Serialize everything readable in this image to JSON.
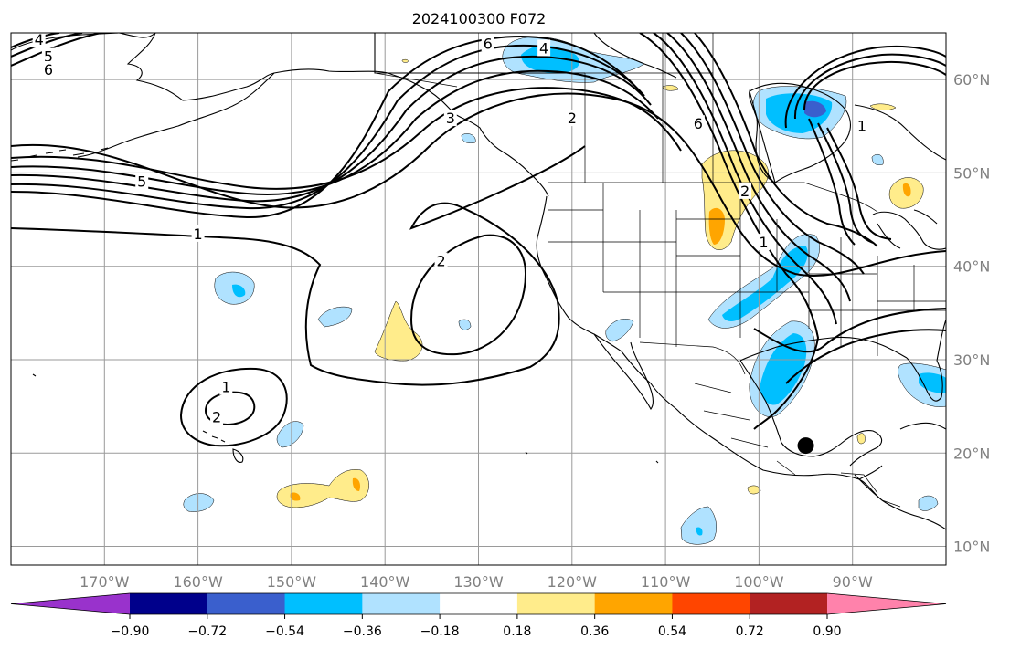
{
  "title": "2024100300 F072",
  "map": {
    "lon_range": [
      -180,
      -80
    ],
    "lat_range": [
      8,
      65
    ],
    "lon_ticks": [
      {
        "value": -170,
        "label": "170°W"
      },
      {
        "value": -160,
        "label": "160°W"
      },
      {
        "value": -150,
        "label": "150°W"
      },
      {
        "value": -140,
        "label": "140°W"
      },
      {
        "value": -130,
        "label": "130°W"
      },
      {
        "value": -120,
        "label": "120°W"
      },
      {
        "value": -110,
        "label": "110°W"
      },
      {
        "value": -100,
        "label": "100°W"
      },
      {
        "value": -90,
        "label": "90°W"
      }
    ],
    "lat_ticks": [
      {
        "value": 10,
        "label": "10°N"
      },
      {
        "value": 20,
        "label": "20°N"
      },
      {
        "value": 30,
        "label": "30°N"
      },
      {
        "value": 40,
        "label": "40°N"
      },
      {
        "value": 50,
        "label": "50°N"
      },
      {
        "value": 60,
        "label": "60°N"
      }
    ],
    "grid": true,
    "marker": {
      "lon": -95,
      "lat": 20.8,
      "color": "#000000"
    }
  },
  "contour_labels": [
    {
      "text": "4",
      "lon": -177,
      "lat": 64.2
    },
    {
      "text": "5",
      "lon": -176,
      "lat": 62.4
    },
    {
      "text": "6",
      "lon": -176,
      "lat": 61.0
    },
    {
      "text": "6",
      "lon": -129,
      "lat": 63.8
    },
    {
      "text": "4",
      "lon": -123,
      "lat": 63.3
    },
    {
      "text": "3",
      "lon": -133,
      "lat": 55.8
    },
    {
      "text": "2",
      "lon": -120,
      "lat": 55.8
    },
    {
      "text": "5",
      "lon": -166,
      "lat": 49.0
    },
    {
      "text": "1",
      "lon": -160,
      "lat": 43.4
    },
    {
      "text": "2",
      "lon": -134,
      "lat": 40.5
    },
    {
      "text": "1",
      "lon": -157,
      "lat": 27.0
    },
    {
      "text": "2",
      "lon": -158,
      "lat": 23.8
    },
    {
      "text": "6",
      "lon": -106.5,
      "lat": 55.2
    },
    {
      "text": "2",
      "lon": -101.5,
      "lat": 48.0
    },
    {
      "text": "1",
      "lon": -99.5,
      "lat": 42.5
    },
    {
      "text": "1",
      "lon": -89,
      "lat": 55.0
    }
  ],
  "colorbar": {
    "ticks": [
      "−0.90",
      "−0.72",
      "−0.54",
      "−0.36",
      "−0.18",
      "0.18",
      "0.36",
      "0.54",
      "0.72",
      "0.90"
    ],
    "colors": [
      "#9932cc",
      "#00008b",
      "#3a5fcd",
      "#00bfff",
      "#b0e2ff",
      "#ffffff",
      "#ffec8b",
      "#ffa500",
      "#ff4500",
      "#b22222",
      "#ff82ab"
    ],
    "extend": "both"
  },
  "palette": {
    "light_blue": "#b0e2ff",
    "mid_blue": "#00bfff",
    "dark_blue": "#3a5fcd",
    "yellow": "#ffec8b",
    "orange": "#ffa500"
  }
}
